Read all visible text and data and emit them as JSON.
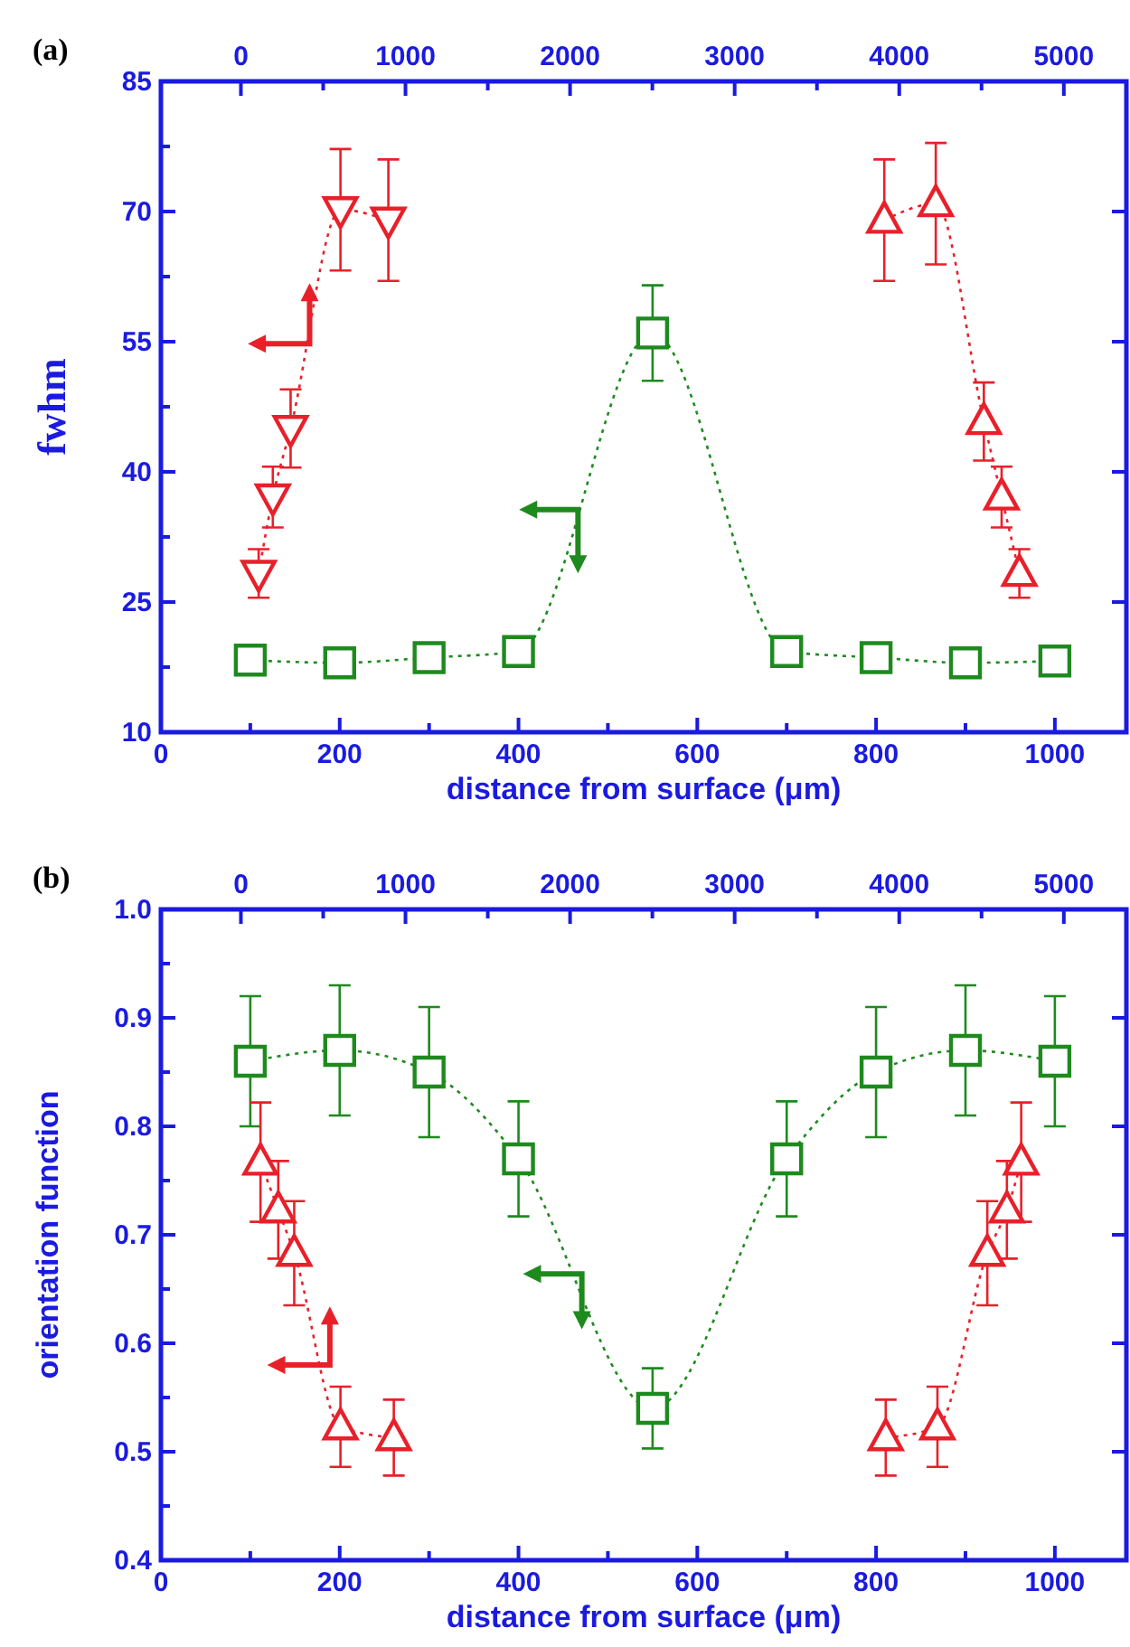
{
  "chart_data": [
    {
      "type": "line",
      "annotations": [
        "(a)"
      ],
      "xlabel": "distance from surface (μm)",
      "ylabel": "fwhm",
      "xlim": [
        0,
        1080
      ],
      "xticks": [
        0,
        200,
        400,
        600,
        800,
        1000
      ],
      "x2lim": [
        -486,
        5380
      ],
      "x2ticks": [
        0,
        1000,
        2000,
        3000,
        4000,
        5000
      ],
      "ylim": [
        10,
        85
      ],
      "yticks": [
        10,
        25,
        40,
        55,
        70,
        85
      ],
      "line_style": "dotted",
      "series": [
        {
          "marker": "square",
          "color": "#1e8a1e",
          "x": [
            100,
            200,
            300,
            400,
            550,
            700,
            800,
            900,
            1000
          ],
          "values": [
            18.3,
            18.0,
            18.6,
            19.3,
            56,
            19.3,
            18.6,
            18.0,
            18.2
          ],
          "errors": [
            null,
            null,
            null,
            null,
            5.5,
            null,
            null,
            null,
            null
          ]
        },
        {
          "axis": "x2",
          "marker": "triangle-down",
          "color": "#e8202a",
          "x": [
            108,
            194,
            302,
            605,
            896
          ],
          "values": [
            28.3,
            37.1,
            45,
            70.2,
            69
          ],
          "errors": [
            2.8,
            3.5,
            4.5,
            7,
            7
          ]
        },
        {
          "axis": "x2",
          "marker": "triangle",
          "color": "#e8202a",
          "x": [
            3909,
            4222,
            4514,
            4622,
            4730
          ],
          "values": [
            69,
            70.9,
            45.8,
            37.1,
            28.3
          ],
          "errors": [
            7,
            7,
            4.5,
            3.5,
            2.8
          ]
        }
      ]
    },
    {
      "type": "line",
      "annotations": [
        "(b)"
      ],
      "xlabel": "distance from surface (μm)",
      "ylabel": "orientation function",
      "xlim": [
        0,
        1080
      ],
      "xticks": [
        0,
        200,
        400,
        600,
        800,
        1000
      ],
      "x2lim": [
        -486,
        5380
      ],
      "x2ticks": [
        0,
        1000,
        2000,
        3000,
        4000,
        5000
      ],
      "ylim": [
        0.4,
        1.0
      ],
      "yticks": [
        {
          "value": 0.4,
          "label": "0.4"
        },
        {
          "value": 0.5,
          "label": "0.5"
        },
        {
          "value": 0.6,
          "label": "0.6"
        },
        {
          "value": 0.7,
          "label": "0.7"
        },
        {
          "value": 0.8,
          "label": "0.8"
        },
        {
          "value": 0.9,
          "label": "0.9"
        },
        {
          "value": 1.0,
          "label": "1.0"
        }
      ],
      "line_style": "dotted",
      "series": [
        {
          "marker": "square",
          "color": "#1e8a1e",
          "x": [
            100,
            200,
            300,
            400,
            550,
            700,
            800,
            900,
            1000
          ],
          "values": [
            0.86,
            0.87,
            0.85,
            0.77,
            0.54,
            0.77,
            0.85,
            0.87,
            0.86
          ],
          "errors": [
            0.06,
            0.06,
            0.06,
            0.053,
            0.037,
            0.053,
            0.06,
            0.06,
            0.06
          ]
        },
        {
          "axis": "x2",
          "marker": "triangle",
          "color": "#e8202a",
          "x": [
            119,
            227,
            324,
            605,
            929
          ],
          "values": [
            0.767,
            0.723,
            0.683,
            0.523,
            0.513
          ],
          "errors": [
            0.055,
            0.045,
            0.048,
            0.037,
            0.035
          ]
        },
        {
          "axis": "x2",
          "marker": "triangle",
          "color": "#e8202a",
          "x": [
            3918,
            4232,
            4535,
            4654,
            4741
          ],
          "values": [
            0.513,
            0.523,
            0.683,
            0.723,
            0.767
          ],
          "errors": [
            0.035,
            0.037,
            0.048,
            0.045,
            0.055
          ]
        }
      ]
    }
  ]
}
